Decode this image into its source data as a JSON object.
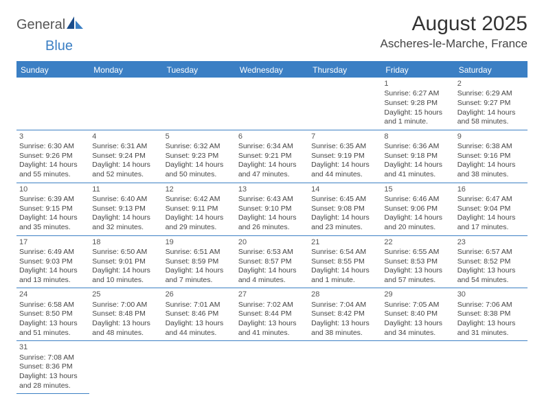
{
  "logo": {
    "general": "General",
    "blue": "Blue",
    "shape_colors": {
      "dark": "#1a4c8a",
      "light": "#3b7fc4"
    }
  },
  "title": "August 2025",
  "location": "Ascheres-le-Marche, France",
  "header_bg": "#3b7fc4",
  "weekdays": [
    "Sunday",
    "Monday",
    "Tuesday",
    "Wednesday",
    "Thursday",
    "Friday",
    "Saturday"
  ],
  "weeks": [
    [
      null,
      null,
      null,
      null,
      null,
      {
        "n": "1",
        "sr": "Sunrise: 6:27 AM",
        "ss": "Sunset: 9:28 PM",
        "dl": "Daylight: 15 hours and 1 minute."
      },
      {
        "n": "2",
        "sr": "Sunrise: 6:29 AM",
        "ss": "Sunset: 9:27 PM",
        "dl": "Daylight: 14 hours and 58 minutes."
      }
    ],
    [
      {
        "n": "3",
        "sr": "Sunrise: 6:30 AM",
        "ss": "Sunset: 9:26 PM",
        "dl": "Daylight: 14 hours and 55 minutes."
      },
      {
        "n": "4",
        "sr": "Sunrise: 6:31 AM",
        "ss": "Sunset: 9:24 PM",
        "dl": "Daylight: 14 hours and 52 minutes."
      },
      {
        "n": "5",
        "sr": "Sunrise: 6:32 AM",
        "ss": "Sunset: 9:23 PM",
        "dl": "Daylight: 14 hours and 50 minutes."
      },
      {
        "n": "6",
        "sr": "Sunrise: 6:34 AM",
        "ss": "Sunset: 9:21 PM",
        "dl": "Daylight: 14 hours and 47 minutes."
      },
      {
        "n": "7",
        "sr": "Sunrise: 6:35 AM",
        "ss": "Sunset: 9:19 PM",
        "dl": "Daylight: 14 hours and 44 minutes."
      },
      {
        "n": "8",
        "sr": "Sunrise: 6:36 AM",
        "ss": "Sunset: 9:18 PM",
        "dl": "Daylight: 14 hours and 41 minutes."
      },
      {
        "n": "9",
        "sr": "Sunrise: 6:38 AM",
        "ss": "Sunset: 9:16 PM",
        "dl": "Daylight: 14 hours and 38 minutes."
      }
    ],
    [
      {
        "n": "10",
        "sr": "Sunrise: 6:39 AM",
        "ss": "Sunset: 9:15 PM",
        "dl": "Daylight: 14 hours and 35 minutes."
      },
      {
        "n": "11",
        "sr": "Sunrise: 6:40 AM",
        "ss": "Sunset: 9:13 PM",
        "dl": "Daylight: 14 hours and 32 minutes."
      },
      {
        "n": "12",
        "sr": "Sunrise: 6:42 AM",
        "ss": "Sunset: 9:11 PM",
        "dl": "Daylight: 14 hours and 29 minutes."
      },
      {
        "n": "13",
        "sr": "Sunrise: 6:43 AM",
        "ss": "Sunset: 9:10 PM",
        "dl": "Daylight: 14 hours and 26 minutes."
      },
      {
        "n": "14",
        "sr": "Sunrise: 6:45 AM",
        "ss": "Sunset: 9:08 PM",
        "dl": "Daylight: 14 hours and 23 minutes."
      },
      {
        "n": "15",
        "sr": "Sunrise: 6:46 AM",
        "ss": "Sunset: 9:06 PM",
        "dl": "Daylight: 14 hours and 20 minutes."
      },
      {
        "n": "16",
        "sr": "Sunrise: 6:47 AM",
        "ss": "Sunset: 9:04 PM",
        "dl": "Daylight: 14 hours and 17 minutes."
      }
    ],
    [
      {
        "n": "17",
        "sr": "Sunrise: 6:49 AM",
        "ss": "Sunset: 9:03 PM",
        "dl": "Daylight: 14 hours and 13 minutes."
      },
      {
        "n": "18",
        "sr": "Sunrise: 6:50 AM",
        "ss": "Sunset: 9:01 PM",
        "dl": "Daylight: 14 hours and 10 minutes."
      },
      {
        "n": "19",
        "sr": "Sunrise: 6:51 AM",
        "ss": "Sunset: 8:59 PM",
        "dl": "Daylight: 14 hours and 7 minutes."
      },
      {
        "n": "20",
        "sr": "Sunrise: 6:53 AM",
        "ss": "Sunset: 8:57 PM",
        "dl": "Daylight: 14 hours and 4 minutes."
      },
      {
        "n": "21",
        "sr": "Sunrise: 6:54 AM",
        "ss": "Sunset: 8:55 PM",
        "dl": "Daylight: 14 hours and 1 minute."
      },
      {
        "n": "22",
        "sr": "Sunrise: 6:55 AM",
        "ss": "Sunset: 8:53 PM",
        "dl": "Daylight: 13 hours and 57 minutes."
      },
      {
        "n": "23",
        "sr": "Sunrise: 6:57 AM",
        "ss": "Sunset: 8:52 PM",
        "dl": "Daylight: 13 hours and 54 minutes."
      }
    ],
    [
      {
        "n": "24",
        "sr": "Sunrise: 6:58 AM",
        "ss": "Sunset: 8:50 PM",
        "dl": "Daylight: 13 hours and 51 minutes."
      },
      {
        "n": "25",
        "sr": "Sunrise: 7:00 AM",
        "ss": "Sunset: 8:48 PM",
        "dl": "Daylight: 13 hours and 48 minutes."
      },
      {
        "n": "26",
        "sr": "Sunrise: 7:01 AM",
        "ss": "Sunset: 8:46 PM",
        "dl": "Daylight: 13 hours and 44 minutes."
      },
      {
        "n": "27",
        "sr": "Sunrise: 7:02 AM",
        "ss": "Sunset: 8:44 PM",
        "dl": "Daylight: 13 hours and 41 minutes."
      },
      {
        "n": "28",
        "sr": "Sunrise: 7:04 AM",
        "ss": "Sunset: 8:42 PM",
        "dl": "Daylight: 13 hours and 38 minutes."
      },
      {
        "n": "29",
        "sr": "Sunrise: 7:05 AM",
        "ss": "Sunset: 8:40 PM",
        "dl": "Daylight: 13 hours and 34 minutes."
      },
      {
        "n": "30",
        "sr": "Sunrise: 7:06 AM",
        "ss": "Sunset: 8:38 PM",
        "dl": "Daylight: 13 hours and 31 minutes."
      }
    ],
    [
      {
        "n": "31",
        "sr": "Sunrise: 7:08 AM",
        "ss": "Sunset: 8:36 PM",
        "dl": "Daylight: 13 hours and 28 minutes."
      },
      null,
      null,
      null,
      null,
      null,
      null
    ]
  ]
}
